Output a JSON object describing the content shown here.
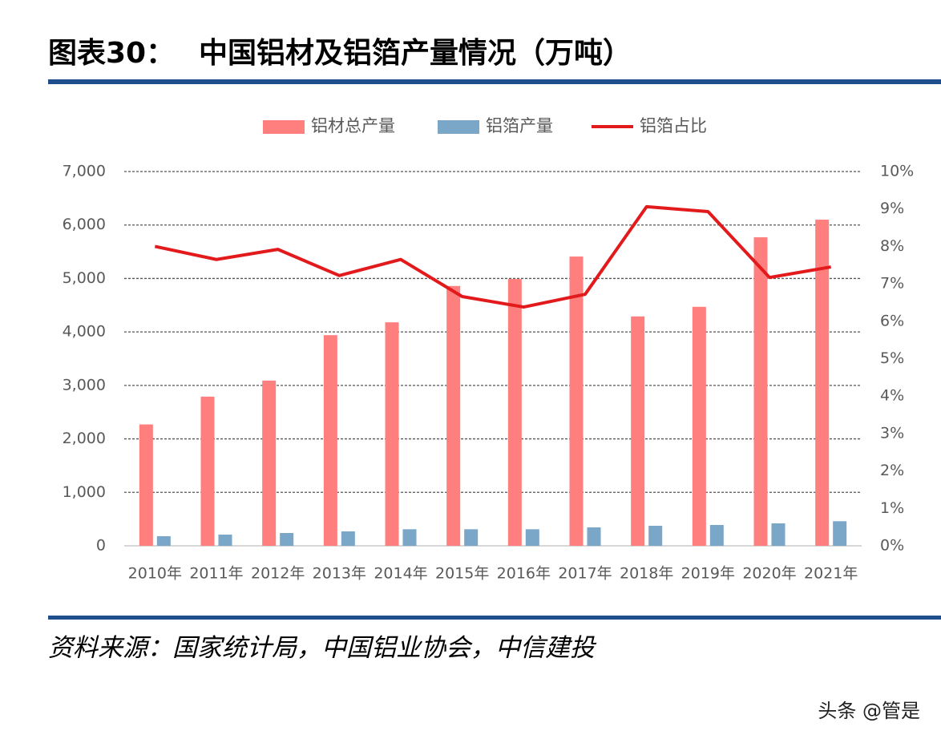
{
  "chart_data": {
    "type": "bar-line",
    "label": "图表30：",
    "title": "中国铝材及铝箔产量情况（万吨）",
    "source": "资料来源：国家统计局，中国铝业协会，中信建投",
    "watermark": "头条 @管是",
    "categories": [
      "2010年",
      "2011年",
      "2012年",
      "2013年",
      "2014年",
      "2015年",
      "2016年",
      "2017年",
      "2018年",
      "2019年",
      "2020年",
      "2021年"
    ],
    "series": [
      {
        "name": "铝材总产量",
        "type": "bar",
        "color": "#ff7f7f",
        "values": [
          2270,
          2790,
          3090,
          3940,
          4180,
          4860,
          4990,
          5410,
          4290,
          4470,
          5770,
          6100
        ]
      },
      {
        "name": "铝箔产量",
        "type": "bar",
        "color": "#7aa6c8",
        "values": [
          180,
          210,
          240,
          270,
          310,
          310,
          310,
          345,
          375,
          390,
          420,
          460
        ]
      },
      {
        "name": "铝箔占比",
        "type": "line",
        "axis": "y2",
        "color": "#e31a1c",
        "values": [
          8.0,
          7.65,
          7.92,
          7.22,
          7.65,
          6.66,
          6.38,
          6.72,
          9.06,
          8.93,
          7.17,
          7.45
        ]
      }
    ],
    "ylim": [
      0,
      7000
    ],
    "yticks": [
      0,
      {
        "value": 1000,
        "label": "1,000"
      },
      {
        "value": 2000,
        "label": "2,000"
      },
      {
        "value": 3000,
        "label": "3,000"
      },
      {
        "value": 4000,
        "label": "4,000"
      },
      {
        "value": 5000,
        "label": "5,000"
      },
      {
        "value": 6000,
        "label": "6,000"
      },
      {
        "value": 7000,
        "label": "7,000"
      }
    ],
    "y2lim": [
      0,
      10
    ],
    "y2ticks": [
      {
        "value": 0,
        "label": "0%"
      },
      {
        "value": 1,
        "label": "1%"
      },
      {
        "value": 2,
        "label": "2%"
      },
      {
        "value": 3,
        "label": "3%"
      },
      {
        "value": 4,
        "label": "4%"
      },
      {
        "value": 5,
        "label": "5%"
      },
      {
        "value": 6,
        "label": "6%"
      },
      {
        "value": 7,
        "label": "7%"
      },
      {
        "value": 8,
        "label": "8%"
      },
      {
        "value": 9,
        "label": "9%"
      },
      {
        "value": 10,
        "label": "10%"
      }
    ],
    "grid": true,
    "legend": "top"
  }
}
